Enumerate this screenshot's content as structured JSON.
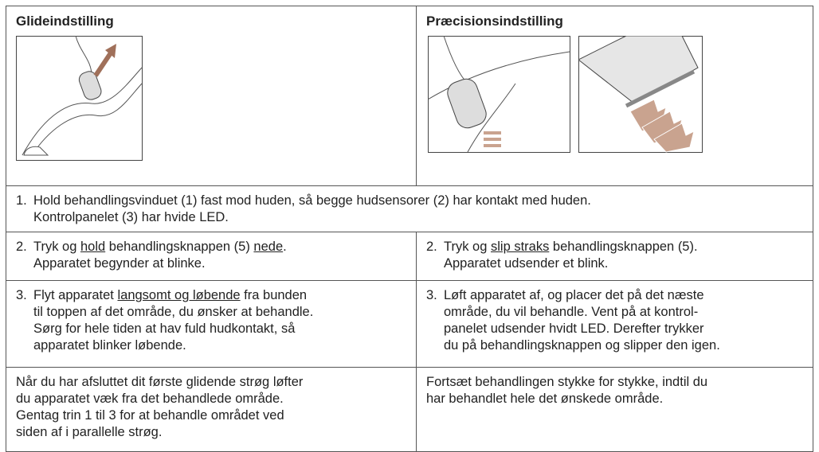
{
  "header": {
    "left_title": "Glideindstilling",
    "right_title": "Præcisionsindstilling"
  },
  "rows": [
    {
      "full": {
        "number": "1.",
        "lines": [
          [
            "Hold behandlingsvinduet (1) fast mod huden, så begge hudsensorer (2) har kontakt med huden."
          ],
          [
            "Kontrolpanelet (3) har hvide LED."
          ]
        ]
      }
    },
    {
      "left": {
        "number": "2.",
        "lines": [
          [
            "Tryk og ",
            {
              "text": "hold",
              "underline": true
            },
            " behandlingsknappen (5) ",
            {
              "text": "nede",
              "underline": true
            },
            "."
          ],
          [
            "Apparatet begynder at blinke."
          ]
        ]
      },
      "right": {
        "number": "2.",
        "lines": [
          [
            "Tryk og ",
            {
              "text": "slip straks",
              "underline": true
            },
            " behandlingsknappen (5)."
          ],
          [
            "Apparatet udsender et blink."
          ]
        ]
      }
    },
    {
      "left": {
        "number": "3.",
        "lines": [
          [
            "Flyt apparatet ",
            {
              "text": "langsomt og løbende",
              "underline": true
            },
            " fra bunden"
          ],
          [
            "til toppen af det område, du ønsker at behandle."
          ],
          [
            "Sørg for hele tiden at hav fuld hudkontakt, så"
          ],
          [
            "apparatet blinker løbende."
          ]
        ]
      },
      "right": {
        "number": "3.",
        "lines": [
          [
            "Løft apparatet af, og placer det på det næste"
          ],
          [
            "område, du vil behandle. Vent på at kontrol-"
          ],
          [
            "panelet udsender hvidt LED. Derefter trykker"
          ],
          [
            "du på behandlingsknappen og slipper den igen."
          ]
        ]
      }
    },
    {
      "left": {
        "lines": [
          [
            "Når du har afsluttet dit første glidende strøg løfter"
          ],
          [
            "du apparatet væk fra det behandlede område."
          ],
          [
            "Gentag trin 1 til 3 for at behandle området ved"
          ],
          [
            "siden af i parallelle strøg."
          ]
        ]
      },
      "right": {
        "lines": [
          [
            "Fortsæt behandlingen stykke for stykke, indtil du"
          ],
          [
            "har behandlet hele det ønskede område."
          ]
        ]
      }
    }
  ]
}
